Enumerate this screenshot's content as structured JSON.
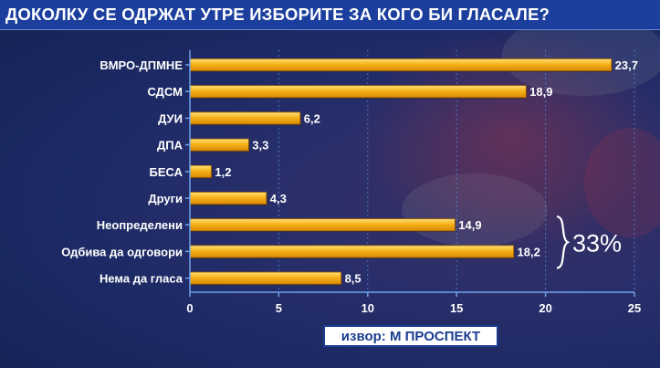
{
  "title": "ДОКОЛКУ СЕ ОДРЖАТ УТРЕ ИЗБОРИТЕ ЗА КОГО БИ ГЛАСАЛЕ?",
  "source": "извор: М ПРОСПЕКТ",
  "brace_label": "33%",
  "colors": {
    "bar_top": "#ffe27a",
    "bar_mid": "#f7b21a",
    "bar_bottom": "#d98a05",
    "title_bar": "#1c3f9e",
    "background": "#1d2a66"
  },
  "chart_data": {
    "type": "bar",
    "orientation": "horizontal",
    "categories": [
      "ВМРО-ДПМНЕ",
      "СДСМ",
      "ДУИ",
      "ДПА",
      "БЕСА",
      "Други",
      "Неопределени",
      "Одбива да одговори",
      "Нема да гласа"
    ],
    "values": [
      23.7,
      18.9,
      6.2,
      3.3,
      1.2,
      4.3,
      14.9,
      18.2,
      8.5
    ],
    "value_labels": [
      "23,7",
      "18,9",
      "6,2",
      "3,3",
      "1,2",
      "4,3",
      "14,9",
      "18,2",
      "8,5"
    ],
    "xlim": [
      0,
      25
    ],
    "xticks": [
      "0",
      "5",
      "10",
      "15",
      "20",
      "25"
    ],
    "grid": true,
    "annotation": {
      "text": "33%",
      "groups": [
        "Неопределени",
        "Одбива да одговори"
      ]
    }
  }
}
